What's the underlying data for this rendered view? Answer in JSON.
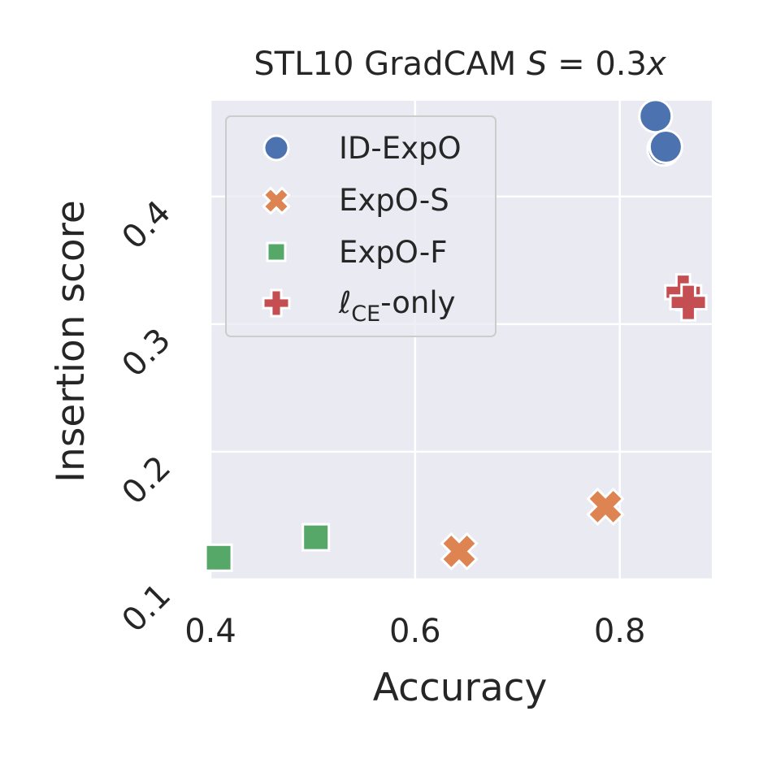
{
  "chart_data": {
    "type": "scatter",
    "title": "STL10 GradCAM S = 0.3x",
    "title_parts": {
      "text": "STL10 GradCAM ",
      "math_var": "S",
      "math_rest": " = 0.3",
      "math_x": "x"
    },
    "xlabel": "Accuracy",
    "ylabel": "Insertion score",
    "xlim": [
      0.4,
      0.89
    ],
    "ylim": [
      0.1,
      0.475
    ],
    "xticks": [
      0.4,
      0.6,
      0.8
    ],
    "xtick_labels": [
      "0.4",
      "0.6",
      "0.8"
    ],
    "yticks": [
      0.1,
      0.2,
      0.3,
      0.4
    ],
    "ytick_labels": [
      "0.1",
      "0.2",
      "0.3",
      "0.4"
    ],
    "grid": true,
    "legend_position": "top-left",
    "background": "#EAEAF2",
    "series": [
      {
        "name": "ID-ExpO",
        "marker": "circle",
        "color": "#4C72B0",
        "points": [
          [
            0.835,
            0.463
          ],
          [
            0.843,
            0.437
          ],
          [
            0.845,
            0.439
          ]
        ]
      },
      {
        "name": "ExpO-S",
        "marker": "x",
        "color": "#DD8452",
        "points": [
          [
            0.643,
            0.122
          ],
          [
            0.786,
            0.157
          ]
        ]
      },
      {
        "name": "ExpO-F",
        "marker": "square",
        "color": "#55A868",
        "points": [
          [
            0.408,
            0.117
          ],
          [
            0.503,
            0.133
          ]
        ]
      },
      {
        "name": "ℓCE-only",
        "name_parts": {
          "ell": "ℓ",
          "sub": "CE",
          "rest": "-only"
        },
        "marker": "plus",
        "color": "#C44E52",
        "points": [
          [
            0.862,
            0.325
          ],
          [
            0.867,
            0.317
          ]
        ]
      }
    ]
  }
}
